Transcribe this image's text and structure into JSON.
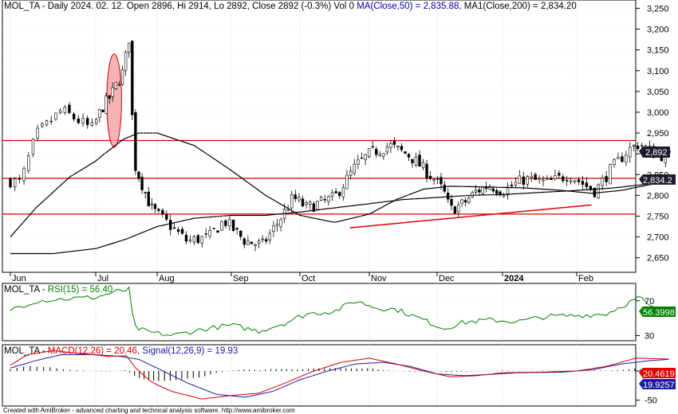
{
  "chart_data": [
    {
      "type": "candlestick",
      "header": {
        "ticker": "MOL_TA",
        "text": " - Daily 2024. 02. 12. Open 2896, Hi 2914, Lo 2892, Close 2892 (-0.3%) Vol 0 ",
        "ma50_text": "MA(Close,50) = 2,835.88,",
        "ma200_text": " MA1(Close,200) = 2,834.20"
      },
      "x_labels": [
        "Jun",
        "Jul",
        "Aug",
        "Sep",
        "Oct",
        "Nov",
        "Dec",
        "2024",
        "Feb"
      ],
      "y_ticks": [
        2650,
        2700,
        2750,
        2800,
        2850,
        2900,
        2950,
        3000,
        3050,
        3100,
        3150,
        3200,
        3250
      ],
      "y_tick_labels": [
        "2,650",
        "2,700",
        "2,750",
        "2,800",
        "2,850",
        "2,900",
        "2,950",
        "3,000",
        "3,050",
        "3,100",
        "3,150",
        "3,200",
        "3,250"
      ],
      "ylim": [
        2615,
        3270
      ],
      "last_close_label": "2,892",
      "ma_label": "2,834.2",
      "horizontal_lines": [
        2932,
        2841,
        2755
      ],
      "trendline": {
        "start_month": 4.72,
        "start_value": 2722,
        "end_month": 8.2,
        "end_value": 2777
      },
      "ellipse": {
        "center_month": 1.3,
        "center_value": 3028,
        "month_radius": 0.12,
        "value_radius": 112
      },
      "path_anchors": [
        [
          0,
          2835
        ],
        [
          0.12,
          2830
        ],
        [
          0.3,
          2945
        ],
        [
          0.6,
          3005
        ],
        [
          0.95,
          2960
        ],
        [
          1.1,
          3010
        ],
        [
          1.25,
          3040
        ],
        [
          1.45,
          3100
        ],
        [
          1.55,
          3185
        ],
        [
          1.62,
          2880
        ],
        [
          1.72,
          2840
        ],
        [
          1.9,
          2770
        ],
        [
          2.1,
          2740
        ],
        [
          2.4,
          2690
        ],
        [
          2.7,
          2700
        ],
        [
          2.9,
          2740
        ],
        [
          3.2,
          2690
        ],
        [
          3.45,
          2680
        ],
        [
          3.7,
          2740
        ],
        [
          3.9,
          2795
        ],
        [
          4.1,
          2770
        ],
        [
          4.5,
          2795
        ],
        [
          4.8,
          2870
        ],
        [
          5.0,
          2900
        ],
        [
          5.3,
          2920
        ],
        [
          5.6,
          2895
        ],
        [
          5.95,
          2840
        ],
        [
          6.1,
          2810
        ],
        [
          6.2,
          2765
        ],
        [
          6.4,
          2780
        ],
        [
          6.6,
          2810
        ],
        [
          6.8,
          2825
        ],
        [
          7.0,
          2810
        ],
        [
          7.3,
          2840
        ],
        [
          7.6,
          2830
        ],
        [
          7.9,
          2850
        ],
        [
          8.15,
          2820
        ],
        [
          8.25,
          2810
        ],
        [
          8.45,
          2860
        ],
        [
          8.7,
          2910
        ],
        [
          8.85,
          2925
        ],
        [
          9.05,
          2900
        ],
        [
          9.25,
          2892
        ]
      ],
      "ma50_anchors": [
        [
          0,
          2700
        ],
        [
          0.3,
          2770
        ],
        [
          0.7,
          2845
        ],
        [
          1.1,
          2895
        ],
        [
          1.45,
          2935
        ],
        [
          1.7,
          2950
        ],
        [
          2.0,
          2950
        ],
        [
          2.5,
          2920
        ],
        [
          3.0,
          2860
        ],
        [
          3.5,
          2800
        ],
        [
          4.0,
          2752
        ],
        [
          4.5,
          2735
        ],
        [
          5.0,
          2755
        ],
        [
          5.4,
          2790
        ],
        [
          5.8,
          2815
        ],
        [
          6.2,
          2822
        ],
        [
          6.8,
          2820
        ],
        [
          7.3,
          2818
        ],
        [
          7.8,
          2812
        ],
        [
          8.2,
          2805
        ],
        [
          8.6,
          2812
        ],
        [
          9.05,
          2828
        ],
        [
          9.25,
          2836
        ]
      ],
      "ma200_anchors": [
        [
          0,
          2660
        ],
        [
          0.5,
          2660
        ],
        [
          1.0,
          2672
        ],
        [
          1.5,
          2695
        ],
        [
          2.0,
          2725
        ],
        [
          2.5,
          2745
        ],
        [
          3.0,
          2752
        ],
        [
          3.5,
          2752
        ],
        [
          4.0,
          2760
        ],
        [
          4.5,
          2770
        ],
        [
          5.0,
          2780
        ],
        [
          5.5,
          2790
        ],
        [
          6.0,
          2795
        ],
        [
          6.5,
          2800
        ],
        [
          7.0,
          2802
        ],
        [
          7.5,
          2807
        ],
        [
          8.0,
          2812
        ],
        [
          8.5,
          2818
        ],
        [
          9.0,
          2828
        ],
        [
          9.25,
          2834
        ]
      ]
    },
    {
      "type": "line",
      "header": {
        "ticker": "MOL_TA",
        "rsi_text": "RSI(15) = 56.40"
      },
      "y_ticks": [
        30,
        70
      ],
      "ylim": [
        24,
        90
      ],
      "last_value_label": "56.3998",
      "anchors": [
        [
          0,
          60
        ],
        [
          0.3,
          70
        ],
        [
          0.6,
          72
        ],
        [
          1.0,
          74
        ],
        [
          1.3,
          80
        ],
        [
          1.55,
          83
        ],
        [
          1.62,
          40
        ],
        [
          1.8,
          35
        ],
        [
          2.2,
          30
        ],
        [
          2.6,
          37
        ],
        [
          3.0,
          42
        ],
        [
          3.4,
          35
        ],
        [
          3.8,
          45
        ],
        [
          4.1,
          55
        ],
        [
          4.5,
          58
        ],
        [
          4.8,
          70
        ],
        [
          5.1,
          62
        ],
        [
          5.4,
          60
        ],
        [
          5.8,
          48
        ],
        [
          6.1,
          38
        ],
        [
          6.4,
          45
        ],
        [
          6.8,
          48
        ],
        [
          7.2,
          46
        ],
        [
          7.6,
          52
        ],
        [
          8.0,
          53
        ],
        [
          8.4,
          55
        ],
        [
          8.7,
          68
        ],
        [
          8.85,
          74
        ],
        [
          9.0,
          62
        ],
        [
          9.25,
          56.4
        ]
      ]
    },
    {
      "type": "line",
      "header": {
        "ticker": "MOL_TA",
        "macd_text": "MACD(12,26) = 20.46,",
        "signal_text": "Signal(12,26,9) = 19.93"
      },
      "y_ticks": [
        0,
        -50
      ],
      "ylim": [
        -60,
        45
      ],
      "macd_label": "20.4619",
      "signal_label": "19.9257",
      "macd_anchors": [
        [
          0,
          10
        ],
        [
          0.2,
          28
        ],
        [
          0.5,
          35
        ],
        [
          0.8,
          30
        ],
        [
          1.2,
          25
        ],
        [
          1.5,
          26
        ],
        [
          1.65,
          5
        ],
        [
          1.9,
          -18
        ],
        [
          2.2,
          -35
        ],
        [
          2.6,
          -48
        ],
        [
          3.0,
          -42
        ],
        [
          3.4,
          -38
        ],
        [
          3.8,
          -20
        ],
        [
          4.2,
          0
        ],
        [
          4.6,
          15
        ],
        [
          5.0,
          22
        ],
        [
          5.4,
          12
        ],
        [
          5.8,
          0
        ],
        [
          6.2,
          -10
        ],
        [
          6.6,
          -8
        ],
        [
          7.0,
          -3
        ],
        [
          7.5,
          -2
        ],
        [
          8.0,
          0
        ],
        [
          8.4,
          8
        ],
        [
          8.8,
          22
        ],
        [
          9.25,
          20.46
        ]
      ],
      "signal_anchors": [
        [
          0,
          5
        ],
        [
          0.3,
          18
        ],
        [
          0.6,
          28
        ],
        [
          1.0,
          28
        ],
        [
          1.4,
          25
        ],
        [
          1.7,
          20
        ],
        [
          2.0,
          5
        ],
        [
          2.4,
          -20
        ],
        [
          2.8,
          -40
        ],
        [
          3.2,
          -45
        ],
        [
          3.6,
          -35
        ],
        [
          4.0,
          -15
        ],
        [
          4.4,
          0
        ],
        [
          4.8,
          12
        ],
        [
          5.2,
          15
        ],
        [
          5.6,
          8
        ],
        [
          6.0,
          -5
        ],
        [
          6.4,
          -8
        ],
        [
          6.8,
          -6
        ],
        [
          7.2,
          -3
        ],
        [
          7.8,
          -2
        ],
        [
          8.2,
          2
        ],
        [
          8.6,
          12
        ],
        [
          9.0,
          18
        ],
        [
          9.25,
          19.93
        ]
      ]
    }
  ],
  "footer": "Created with AmiBroker - advanced charting and technical analysis software. http://www.amibroker.com",
  "colors": {
    "up_candle": "#ffffff",
    "down_candle": "#000000",
    "red_line": "#d40000",
    "ma_line": "#000000",
    "rsi_line": "#008000",
    "macd_line": "#d40000",
    "signal_line": "#1a1aaa",
    "label_dark": "#000000",
    "label_blue": "#0000a0",
    "label_green": "#008000",
    "label_red": "#e00000",
    "ellipse_fill": "#f4a0a0"
  }
}
